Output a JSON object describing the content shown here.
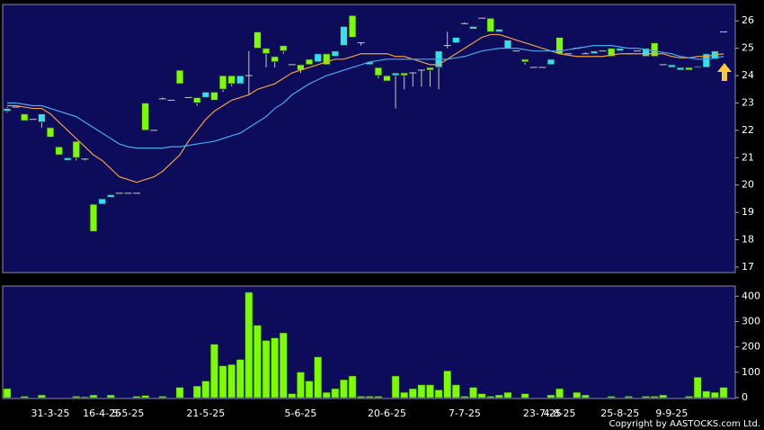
{
  "chart_data": [
    {
      "type": "candlestick",
      "categories": [
        null,
        null,
        null,
        null,
        null,
        "31-3-25",
        null,
        null,
        null,
        null,
        null,
        "16-4-25",
        null,
        null,
        "5-5-25",
        null,
        null,
        null,
        null,
        null,
        null,
        null,
        null,
        "21-5-25",
        null,
        null,
        null,
        null,
        null,
        null,
        null,
        null,
        null,
        null,
        "5-6-25",
        null,
        null,
        null,
        null,
        null,
        null,
        null,
        null,
        null,
        "20-6-25",
        null,
        null,
        null,
        null,
        null,
        null,
        null,
        null,
        "7-7-25",
        null,
        null,
        null,
        null,
        null,
        null,
        null,
        null,
        "23-7-25",
        null,
        "4-8-25",
        null,
        null,
        null,
        null,
        null,
        null,
        "25-8-25",
        null,
        null,
        null,
        null,
        null,
        "9-9-25",
        null,
        null,
        null,
        null,
        null,
        null
      ],
      "ohlc": [
        [
          22.8,
          22.85,
          22.65,
          22.7
        ],
        [
          22.85,
          22.85,
          22.85,
          22.85
        ],
        [
          22.35,
          22.6,
          22.35,
          22.6
        ],
        [
          22.4,
          22.4,
          22.4,
          22.4
        ],
        [
          22.6,
          22.6,
          22.1,
          22.3
        ],
        [
          21.75,
          22.1,
          21.75,
          22.1
        ],
        [
          21.1,
          21.4,
          21.1,
          21.4
        ],
        [
          21.0,
          21.0,
          20.9,
          20.9
        ],
        [
          21.0,
          21.6,
          20.9,
          21.6
        ],
        [
          20.95,
          20.95,
          20.9,
          20.95
        ],
        [
          18.3,
          19.3,
          18.3,
          19.3
        ],
        [
          19.5,
          19.5,
          19.3,
          19.3
        ],
        [
          19.65,
          19.65,
          19.55,
          19.55
        ],
        [
          19.7,
          19.7,
          19.7,
          19.7
        ],
        [
          19.7,
          19.7,
          19.7,
          19.7
        ],
        [
          19.7,
          19.7,
          19.7,
          19.7
        ],
        [
          22.0,
          23.0,
          22.0,
          23.0
        ],
        [
          22.0,
          22.0,
          22.0,
          22.0
        ],
        [
          23.15,
          23.2,
          23.15,
          23.15
        ],
        [
          23.1,
          23.1,
          23.1,
          23.1
        ],
        [
          23.7,
          24.2,
          23.7,
          24.2
        ],
        [
          23.2,
          23.2,
          23.2,
          23.2
        ],
        [
          23.0,
          23.2,
          22.9,
          23.2
        ],
        [
          23.4,
          23.4,
          23.2,
          23.2
        ],
        [
          23.1,
          23.4,
          23.1,
          23.4
        ],
        [
          23.5,
          24.0,
          23.4,
          24.0
        ],
        [
          23.7,
          24.0,
          23.6,
          24.0
        ],
        [
          24.0,
          24.0,
          23.7,
          23.7
        ],
        [
          24.0,
          24.9,
          23.3,
          24.0
        ],
        [
          25.0,
          25.6,
          25.0,
          25.6
        ],
        [
          24.8,
          25.0,
          24.3,
          25.0
        ],
        [
          24.5,
          24.7,
          24.3,
          24.7
        ],
        [
          24.9,
          25.1,
          24.8,
          25.1
        ],
        [
          24.4,
          24.4,
          24.4,
          24.4
        ],
        [
          24.2,
          24.4,
          24.1,
          24.4
        ],
        [
          24.4,
          24.6,
          24.4,
          24.6
        ],
        [
          24.8,
          24.8,
          24.5,
          24.5
        ],
        [
          24.4,
          24.8,
          24.4,
          24.8
        ],
        [
          24.9,
          24.9,
          24.7,
          24.7
        ],
        [
          25.8,
          25.8,
          25.1,
          25.1
        ],
        [
          25.4,
          26.2,
          25.4,
          26.2
        ],
        [
          25.2,
          25.2,
          25.1,
          25.2
        ],
        [
          24.5,
          24.5,
          24.4,
          24.4
        ],
        [
          24.0,
          24.3,
          23.9,
          24.3
        ],
        [
          23.8,
          24.0,
          23.8,
          24.0
        ],
        [
          24.1,
          24.1,
          22.8,
          24.0
        ],
        [
          24.0,
          24.1,
          23.5,
          24.1
        ],
        [
          24.1,
          24.1,
          23.6,
          24.1
        ],
        [
          24.2,
          24.2,
          23.6,
          24.2
        ],
        [
          24.2,
          24.3,
          23.6,
          24.3
        ],
        [
          24.9,
          24.9,
          23.5,
          24.3
        ],
        [
          25.1,
          25.6,
          25.0,
          25.1
        ],
        [
          25.4,
          25.4,
          25.2,
          25.2
        ],
        [
          25.9,
          25.95,
          25.9,
          25.9
        ],
        [
          25.8,
          25.8,
          25.7,
          25.7
        ],
        [
          26.1,
          26.1,
          26.1,
          26.1
        ],
        [
          25.6,
          26.1,
          25.6,
          26.1
        ],
        [
          25.7,
          25.7,
          25.6,
          25.6
        ],
        [
          25.3,
          25.3,
          25.0,
          25.0
        ],
        [
          24.9,
          24.9,
          24.9,
          24.9
        ],
        [
          24.5,
          24.6,
          24.4,
          24.6
        ],
        [
          24.3,
          24.3,
          24.3,
          24.3
        ],
        [
          24.3,
          24.3,
          24.3,
          24.3
        ],
        [
          24.6,
          24.6,
          24.4,
          24.4
        ],
        [
          24.8,
          25.4,
          24.8,
          25.4
        ],
        [
          24.8,
          24.8,
          24.8,
          24.8
        ],
        [
          25.0,
          25.0,
          25.0,
          25.0
        ],
        [
          24.8,
          24.85,
          24.8,
          24.8
        ],
        [
          24.9,
          24.9,
          24.8,
          24.8
        ],
        [
          24.9,
          24.9,
          24.9,
          24.9
        ],
        [
          24.7,
          25.0,
          24.7,
          25.0
        ],
        [
          25.0,
          25.0,
          24.9,
          24.9
        ],
        [
          24.8,
          24.8,
          24.8,
          24.8
        ],
        [
          24.9,
          24.9,
          24.9,
          24.9
        ],
        [
          25.0,
          25.0,
          24.7,
          24.7
        ],
        [
          24.7,
          25.2,
          24.7,
          25.2
        ],
        [
          24.4,
          24.4,
          24.4,
          24.4
        ],
        [
          24.4,
          24.4,
          24.3,
          24.3
        ],
        [
          24.3,
          24.3,
          24.2,
          24.2
        ],
        [
          24.2,
          24.3,
          24.2,
          24.3
        ],
        [
          24.35,
          24.35,
          24.3,
          24.3
        ],
        [
          24.8,
          24.8,
          24.3,
          24.3
        ],
        [
          24.9,
          24.9,
          24.6,
          24.6
        ],
        [
          25.6,
          25.6,
          25.6,
          25.6
        ]
      ],
      "up_color": "#7cfc00",
      "down_color": "#33e0f0",
      "doji_color": "#c8c8c8",
      "series": [
        {
          "color": "#f0a040",
          "values": [
            22.9,
            22.9,
            22.85,
            22.8,
            22.8,
            22.6,
            22.3,
            22.0,
            21.7,
            21.4,
            21.1,
            20.9,
            20.6,
            20.3,
            20.2,
            20.1,
            20.2,
            20.3,
            20.5,
            20.8,
            21.1,
            21.6,
            22.0,
            22.4,
            22.7,
            22.9,
            23.1,
            23.2,
            23.3,
            23.5,
            23.6,
            23.7,
            23.9,
            24.1,
            24.2,
            24.3,
            24.4,
            24.5,
            24.6,
            24.6,
            24.7,
            24.8,
            24.8,
            24.8,
            24.8,
            24.7,
            24.7,
            24.6,
            24.5,
            24.4,
            24.4,
            24.6,
            24.8,
            25.0,
            25.2,
            25.4,
            25.5,
            25.5,
            25.4,
            25.3,
            25.2,
            25.1,
            25.0,
            24.9,
            24.8,
            24.75,
            24.7,
            24.7,
            24.7,
            24.7,
            24.75,
            24.8,
            24.8,
            24.8,
            24.8,
            24.8,
            24.8,
            24.7,
            24.65,
            24.65,
            24.7,
            24.7,
            24.75,
            24.8
          ]
        },
        {
          "color": "#4aa8f0",
          "values": [
            23.0,
            23.0,
            22.95,
            22.9,
            22.9,
            22.8,
            22.7,
            22.6,
            22.5,
            22.3,
            22.1,
            21.9,
            21.7,
            21.5,
            21.4,
            21.35,
            21.35,
            21.35,
            21.35,
            21.4,
            21.4,
            21.45,
            21.5,
            21.55,
            21.6,
            21.7,
            21.8,
            21.9,
            22.1,
            22.3,
            22.5,
            22.8,
            23.0,
            23.3,
            23.5,
            23.7,
            23.85,
            24.0,
            24.1,
            24.2,
            24.3,
            24.4,
            24.5,
            24.55,
            24.6,
            24.6,
            24.6,
            24.6,
            24.6,
            24.6,
            24.6,
            24.6,
            24.65,
            24.7,
            24.8,
            24.9,
            24.95,
            25.0,
            25.0,
            25.0,
            24.95,
            24.9,
            24.9,
            24.9,
            24.9,
            24.95,
            25.0,
            25.05,
            25.1,
            25.1,
            25.1,
            25.05,
            25.0,
            25.0,
            24.95,
            24.9,
            24.85,
            24.8,
            24.7,
            24.65,
            24.6,
            24.6,
            24.65,
            24.7
          ]
        }
      ],
      "ylim": [
        16.8,
        26.6
      ],
      "yticks": [
        17,
        18,
        19,
        20,
        21,
        22,
        23,
        24,
        25,
        26
      ]
    },
    {
      "type": "bar",
      "values": [
        35,
        0,
        5,
        0,
        10,
        0,
        0,
        0,
        5,
        3,
        10,
        0,
        10,
        0,
        0,
        5,
        8,
        0,
        5,
        0,
        40,
        0,
        45,
        65,
        210,
        125,
        130,
        150,
        415,
        285,
        225,
        235,
        255,
        15,
        100,
        65,
        160,
        20,
        35,
        70,
        85,
        5,
        5,
        5,
        0,
        85,
        20,
        35,
        50,
        50,
        30,
        105,
        50,
        5,
        40,
        15,
        5,
        10,
        20,
        0,
        15,
        0,
        0,
        10,
        35,
        0,
        20,
        10,
        0,
        0,
        5,
        0,
        5,
        0,
        5,
        5,
        10,
        0,
        0,
        5,
        80,
        25,
        20,
        40
      ],
      "color": "#7cfc00",
      "ylim": [
        0,
        440
      ],
      "yticks": [
        0,
        100,
        200,
        300,
        400
      ]
    }
  ],
  "footer": "Copyright by AASTOCKS.com Ltd."
}
